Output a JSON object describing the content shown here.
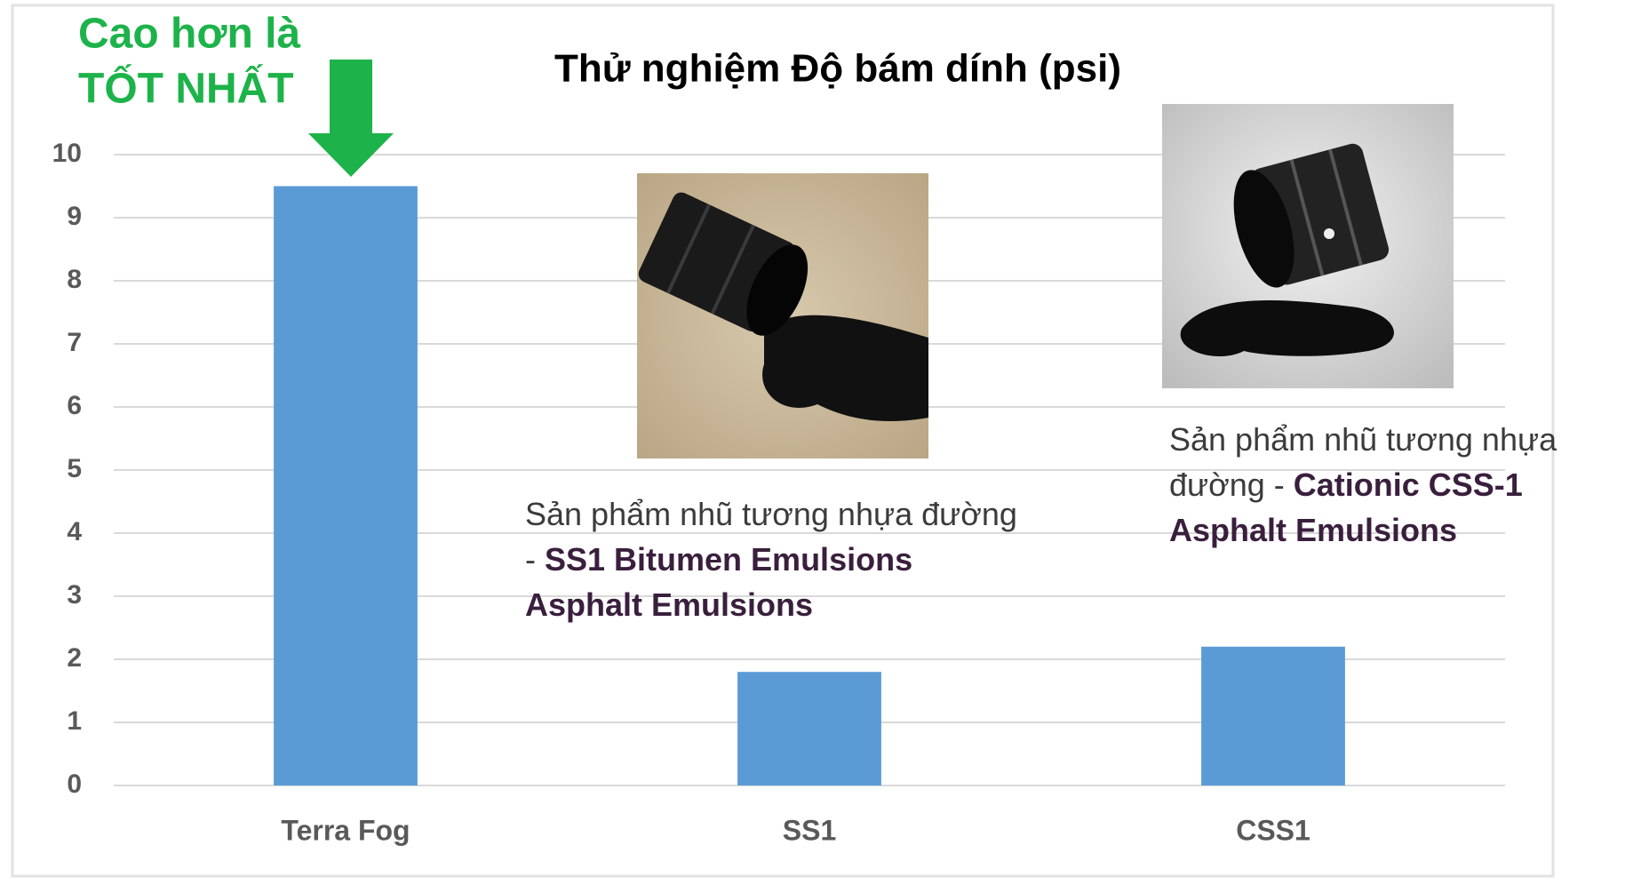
{
  "chart_data": {
    "type": "bar",
    "title": "Thử nghiệm Độ bám dính (psi)",
    "categories": [
      "Terra Fog",
      "SS1",
      "CSS1"
    ],
    "values": [
      9.5,
      1.8,
      2.2
    ],
    "color": "#5b9bd5",
    "ylim": [
      0,
      10
    ],
    "yticks": [
      0,
      1,
      2,
      3,
      4,
      5,
      6,
      7,
      8,
      9,
      10
    ],
    "grid": true,
    "highlight": {
      "lines": [
        "Cao hơn là",
        "TỐT NHẤT"
      ],
      "color": "#1db34a"
    },
    "annotations": [
      {
        "lines": [
          [
            "Sản phẩm nhũ tương nhựa đường"
          ],
          [
            "- ",
            "SS1 Bitumen Emulsions"
          ],
          [
            "Asphalt Emulsions"
          ]
        ]
      },
      {
        "lines": [
          [
            "Sản phẩm nhũ tương nhựa"
          ],
          [
            "đường - ",
            "Cationic CSS-1"
          ],
          [
            "Asphalt Emulsions"
          ]
        ]
      }
    ]
  }
}
